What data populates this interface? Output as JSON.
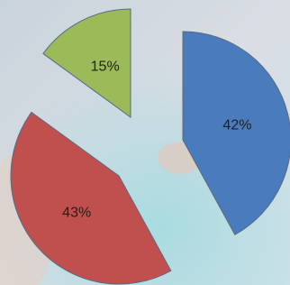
{
  "chart_data": {
    "type": "pie",
    "categories": [
      null,
      null,
      null
    ],
    "values": [
      42,
      43,
      15
    ],
    "value_labels": [
      "42%",
      "43%",
      "15%"
    ],
    "colors": [
      "#4a7bbd",
      "#c0504d",
      "#9bbb59"
    ]
  }
}
